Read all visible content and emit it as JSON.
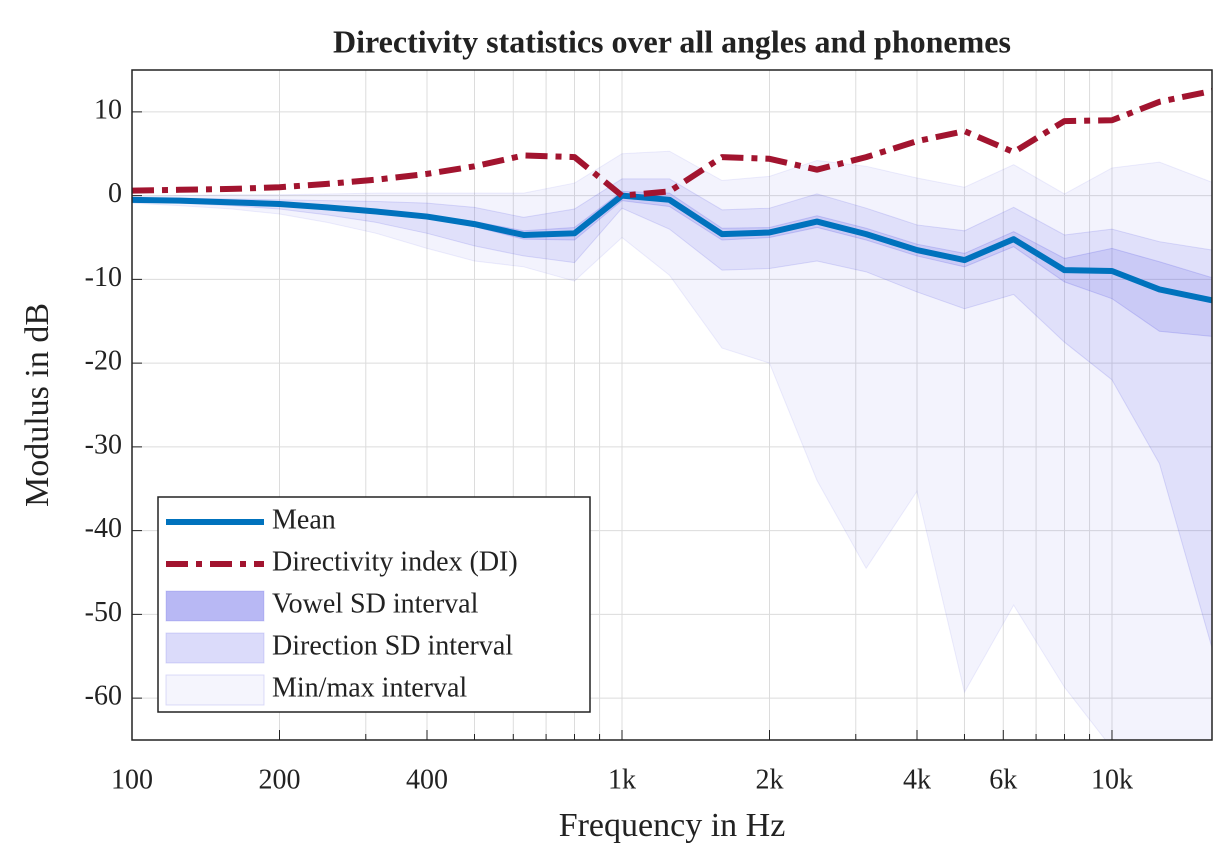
{
  "chart_data": {
    "type": "line",
    "title": "Directivity statistics over all angles and phonemes",
    "xlabel": "Frequency in Hz",
    "ylabel": "Modulus in dB",
    "xscale": "log",
    "grid": true,
    "legend": "lower left",
    "x": [
      100,
      125,
      160,
      200,
      250,
      315,
      400,
      500,
      630,
      800,
      1000,
      1250,
      1600,
      2000,
      2500,
      3150,
      4000,
      5000,
      6300,
      8000,
      10000,
      12500,
      16000
    ],
    "xlim": [
      100,
      16000
    ],
    "ylim": [
      -65,
      15
    ],
    "xticks": [
      100,
      200,
      400,
      {
        "value": 1000,
        "label": "1k"
      },
      {
        "value": 2000,
        "label": "2k"
      },
      {
        "value": 4000,
        "label": "4k"
      },
      {
        "value": 6000,
        "label": "6k"
      },
      {
        "value": 10000,
        "label": "10k"
      }
    ],
    "xminorticks": [
      300,
      500,
      600,
      700,
      800,
      900,
      3000,
      5000,
      7000,
      8000,
      9000
    ],
    "yticks": [
      10,
      0,
      -10,
      -20,
      -30,
      -40,
      -50,
      -60
    ],
    "series": [
      {
        "name": "Mean",
        "color": "#0072bd",
        "style": "solid",
        "values": [
          -0.5,
          -0.6,
          -0.8,
          -1.0,
          -1.4,
          -1.9,
          -2.5,
          -3.4,
          -4.7,
          -4.5,
          0.0,
          -0.5,
          -4.6,
          -4.4,
          -3.1,
          -4.6,
          -6.5,
          -7.7,
          -5.2,
          -8.9,
          -9.0,
          -11.2,
          -12.5
        ]
      },
      {
        "name": "Directivity index (DI)",
        "color": "#a2142f",
        "style": "dashdot",
        "values": [
          0.6,
          0.7,
          0.8,
          1.0,
          1.4,
          1.9,
          2.6,
          3.5,
          4.8,
          4.6,
          0.0,
          0.5,
          4.6,
          4.4,
          3.1,
          4.6,
          6.5,
          7.7,
          5.2,
          8.9,
          9.0,
          11.2,
          12.5
        ]
      }
    ],
    "bands": [
      {
        "name": "Vowel SD interval",
        "color": "#5a5ae6",
        "opacity": 0.16,
        "lower": [
          -0.6,
          -0.7,
          -0.9,
          -1.1,
          -1.5,
          -2.0,
          -2.7,
          -3.7,
          -5.2,
          -5.3,
          -0.6,
          -1.3,
          -5.3,
          -5.0,
          -3.8,
          -5.3,
          -7.2,
          -8.5,
          -6.1,
          -10.3,
          -12.3,
          -16.2,
          -16.8
        ],
        "upper": [
          -0.4,
          -0.5,
          -0.7,
          -0.9,
          -1.3,
          -1.8,
          -2.3,
          -3.1,
          -4.2,
          -3.8,
          0.5,
          0.3,
          -3.9,
          -3.8,
          -2.4,
          -3.9,
          -5.8,
          -6.9,
          -4.3,
          -7.5,
          -6.3,
          -7.9,
          -9.8
        ]
      },
      {
        "name": "Direction SD interval",
        "color": "#5a5ae6",
        "opacity": 0.12,
        "lower": [
          -0.7,
          -0.9,
          -1.2,
          -1.6,
          -2.3,
          -3.2,
          -4.5,
          -6.0,
          -7.2,
          -8.0,
          -1.5,
          -4.0,
          -8.9,
          -8.7,
          -7.8,
          -9.1,
          -11.5,
          -13.5,
          -11.8,
          -17.5,
          -22,
          -32,
          -54
        ],
        "upper": [
          -0.3,
          -0.3,
          -0.4,
          -0.5,
          -0.6,
          -0.7,
          -0.9,
          -1.4,
          -2.6,
          -1.6,
          2.0,
          2.0,
          -1.7,
          -1.5,
          0.2,
          -1.5,
          -3.5,
          -4.2,
          -1.4,
          -4.7,
          -4.0,
          -5.5,
          -6.5
        ]
      },
      {
        "name": "Min/max interval",
        "color": "#5a5ae6",
        "opacity": 0.07,
        "lower": [
          -0.9,
          -1.2,
          -1.6,
          -2.2,
          -3.2,
          -4.5,
          -6.3,
          -7.8,
          -8.5,
          -10.2,
          -5.0,
          -9.5,
          -18.2,
          -20,
          -34,
          -44.5,
          -35.3,
          -59.3,
          -48.9,
          -58.7,
          -66,
          -75,
          -80
        ],
        "upper": [
          -0.1,
          0,
          0.1,
          0.1,
          0.2,
          0.3,
          0.3,
          0.3,
          0.3,
          1.5,
          5.0,
          5.3,
          1.8,
          2.3,
          4.2,
          3.5,
          2.1,
          1.0,
          3.7,
          0.2,
          3.3,
          4.0,
          1.6
        ]
      }
    ]
  }
}
